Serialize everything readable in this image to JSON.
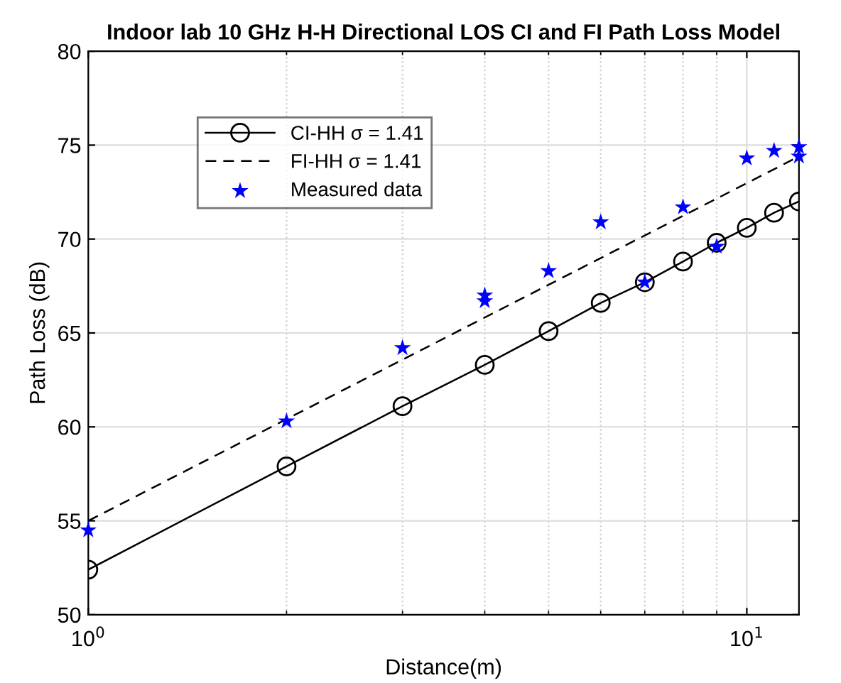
{
  "chart_data": {
    "type": "line",
    "title": "Indoor lab 10 GHz H-H Directional LOS CI and FI Path Loss Model",
    "xlabel": "Distance(m)",
    "ylabel": "Path Loss (dB)",
    "log": "x",
    "xlim": [
      1,
      12
    ],
    "ylim": [
      50,
      80
    ],
    "xticks": [
      {
        "value": 1,
        "label": "10$^{0}$"
      },
      {
        "value": 10,
        "label": "10$^{1}$"
      }
    ],
    "yticks": [
      50,
      55,
      60,
      65,
      70,
      75,
      80
    ],
    "grid": true,
    "legend": "top left",
    "series": [
      {
        "name": "CI-HH σ = 1.41",
        "color": "#000000",
        "marker": "circle",
        "line_style": "solid",
        "x": [
          1,
          2,
          3,
          4,
          5,
          6,
          7,
          8,
          9,
          10,
          11,
          12
        ],
        "values": [
          52.4,
          57.9,
          61.1,
          63.3,
          65.1,
          66.6,
          67.7,
          68.8,
          69.8,
          70.6,
          71.4,
          72.0
        ]
      },
      {
        "name": "FI-HH σ = 1.41",
        "color": "#000000",
        "marker": "none",
        "line_style": "dashed",
        "x": [
          1,
          12
        ],
        "values": [
          55.0,
          74.4
        ]
      },
      {
        "name": "Measured data",
        "type": "scatter",
        "color": "#0000ff",
        "marker": "star",
        "x": [
          1,
          2,
          3,
          4,
          4,
          5,
          6,
          7,
          8,
          9,
          10,
          11,
          12,
          12
        ],
        "values": [
          54.5,
          60.3,
          64.2,
          66.7,
          67.0,
          68.3,
          70.9,
          67.7,
          71.7,
          69.6,
          74.3,
          74.7,
          74.9,
          74.4
        ]
      }
    ]
  }
}
